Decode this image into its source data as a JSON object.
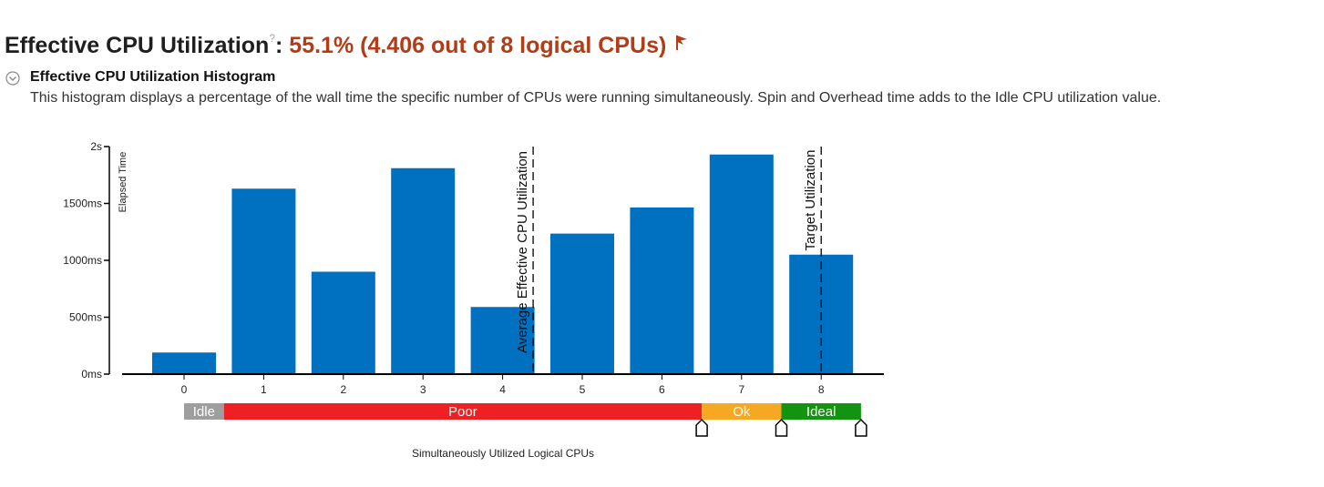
{
  "header": {
    "title": "Effective CPU Utilization",
    "help_icon": "?",
    "colon": ":",
    "value": "55.1% (4.406 out of 8 logical CPUs)",
    "value_color": "#b23c17",
    "flag_icon": "flag-icon"
  },
  "section": {
    "toggle_icon": "chevron-collapse-icon",
    "heading": "Effective CPU Utilization Histogram",
    "description": "This histogram displays a percentage of the wall time the specific number of CPUs were running simultaneously. Spin and Overhead time adds to the Idle CPU utilization value."
  },
  "chart_data": {
    "type": "bar",
    "categories": [
      "0",
      "1",
      "2",
      "3",
      "4",
      "5",
      "6",
      "7",
      "8"
    ],
    "values_ms": [
      190,
      1630,
      900,
      1810,
      590,
      1235,
      1465,
      1930,
      1050
    ],
    "bar_color": "#0070c0",
    "ylabel": "Elapsed Time",
    "xlabel": "Simultaneously Utilized Logical CPUs",
    "ylim_ms": [
      0,
      2000
    ],
    "yticks": [
      {
        "value": 0,
        "label": "0ms"
      },
      {
        "value": 500,
        "label": "500ms"
      },
      {
        "value": 1000,
        "label": "1000ms"
      },
      {
        "value": 1500,
        "label": "1500ms"
      },
      {
        "value": 2000,
        "label": "2s"
      }
    ],
    "reference_lines": [
      {
        "x": 4.406,
        "label": "Average Effective CPU Utilization"
      },
      {
        "x": 8,
        "label": "Target Utilization"
      }
    ],
    "ranges": [
      {
        "label": "Idle",
        "from": 0,
        "to": 0.5,
        "color": "#9e9e9e"
      },
      {
        "label": "Poor",
        "from": 0.5,
        "to": 6.5,
        "color": "#ee2024"
      },
      {
        "label": "Ok",
        "from": 6.5,
        "to": 7.5,
        "color": "#f7a823"
      },
      {
        "label": "Ideal",
        "from": 7.5,
        "to": 8.5,
        "color": "#13930f"
      }
    ],
    "range_handles": [
      6.5,
      7.5,
      8.5
    ],
    "grid": false,
    "legend": "none"
  }
}
